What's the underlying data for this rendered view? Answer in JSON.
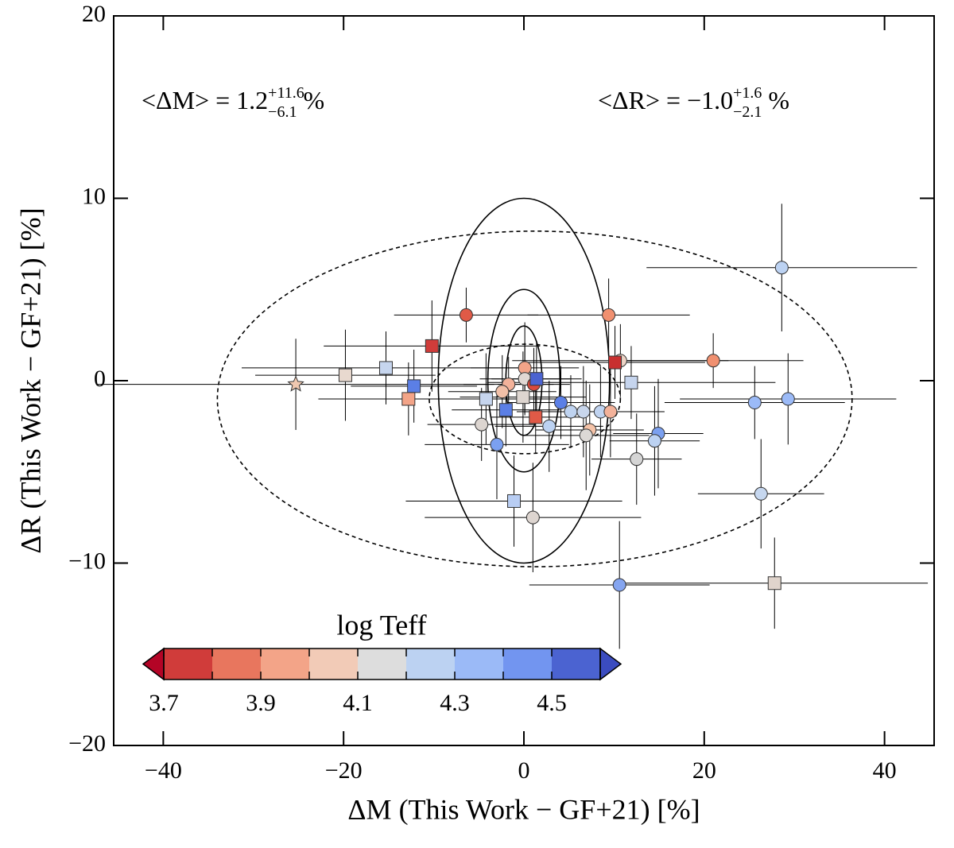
{
  "chart_data": {
    "type": "scatter",
    "xlabel": "ΔM (This Work − GF+21) [%]",
    "ylabel": "ΔR (This Work − GF+21) [%]",
    "xlim": [
      -45.5,
      45.5
    ],
    "ylim": [
      -20,
      20
    ],
    "xticks": [
      {
        "value": -40,
        "label": "−40"
      },
      {
        "value": -20,
        "label": "−20"
      },
      0,
      20,
      40
    ],
    "yticks": [
      {
        "value": -20,
        "label": "−20"
      },
      {
        "value": -10,
        "label": "−10"
      },
      0,
      10,
      20
    ],
    "annotations": [
      {
        "main": "<ΔM> = 1.2",
        "sup": "+11.6",
        "sub": "−6.1",
        "unit": "%"
      },
      {
        "main": "<ΔR> = −1.0",
        "sup": "+1.6",
        "sub": "−2.1",
        "unit": "%"
      }
    ],
    "ellipses": [
      {
        "cx": 0,
        "cy": 0,
        "rx": 9.5,
        "ry": 10,
        "dashed": false
      },
      {
        "cx": 0,
        "cy": 0,
        "rx": 4,
        "ry": 5,
        "dashed": false
      },
      {
        "cx": 0,
        "cy": 0,
        "rx": 2,
        "ry": 3,
        "dashed": false
      },
      {
        "cx": 1.2,
        "cy": -1.0,
        "rx": 35.2,
        "ry": 9.2,
        "dashed": true
      },
      {
        "cx": 0.1,
        "cy": -1.0,
        "rx": 10.6,
        "ry": 3.0,
        "dashed": true
      }
    ],
    "series": [
      {
        "marker": "circle",
        "x": [
          -6.4,
          9.4,
          28.6,
          21.0,
          25.6,
          29.3,
          10.7,
          -4.7,
          -3.0,
          0.1,
          -1.7,
          -2.4,
          0.1,
          1.1,
          4.1,
          5.2,
          6.6,
          8.5,
          9.6,
          7.3,
          6.9,
          2.8,
          14.9,
          14.5,
          12.5,
          26.3,
          1.0,
          10.6
        ],
        "y": [
          3.6,
          3.6,
          6.2,
          1.1,
          -1.2,
          -1.0,
          1.1,
          -2.4,
          -3.5,
          0.7,
          -0.2,
          -0.6,
          0.1,
          -0.2,
          -1.2,
          -1.7,
          -1.7,
          -1.7,
          -1.7,
          -2.7,
          -3.0,
          -2.5,
          -2.9,
          -3.3,
          -4.3,
          -6.2,
          -7.5,
          -11.2
        ],
        "xerr": [
          8,
          9,
          15,
          10,
          10,
          12,
          12,
          6,
          8,
          6,
          5,
          6,
          5,
          4,
          6,
          6,
          7,
          6,
          6,
          6,
          7,
          6,
          5,
          5,
          5,
          7,
          12,
          10
        ],
        "yerr": [
          1.5,
          2,
          3.5,
          1.5,
          2,
          2.5,
          2,
          2,
          3,
          2.5,
          1.5,
          2,
          2,
          2,
          2,
          2,
          2.5,
          2.5,
          2.5,
          2.5,
          3,
          2.5,
          3,
          3,
          2.5,
          3,
          3,
          3.5
        ],
        "colors": [
          "#e05a47",
          "#f09070",
          "#bcd2f2",
          "#f09070",
          "#9bbaf7",
          "#9bbaf7",
          "#ecd3c5",
          "#dcd5d0",
          "#7ba0f0",
          "#f3a488",
          "#f3b29a",
          "#f2c0a8",
          "#e0d8d3",
          "#d94a3c",
          "#5b7fe6",
          "#bfd3f0",
          "#c8d6ec",
          "#c0d3f0",
          "#f3b29a",
          "#f5c3a8",
          "#dcd8d5",
          "#bcd2f2",
          "#7ba0f0",
          "#bcd2f2",
          "#d5d5d5",
          "#c6d7ef",
          "#ddd5d0",
          "#85a5f0"
        ]
      },
      {
        "marker": "square",
        "x": [
          -10.2,
          -19.8,
          -15.3,
          -12.2,
          -12.8,
          -4.2,
          -2.0,
          -0.1,
          1.3,
          11.9,
          10.1,
          -1.1,
          27.8,
          1.4
        ],
        "y": [
          1.9,
          0.3,
          0.7,
          -0.3,
          -1.0,
          -1.0,
          -1.6,
          -0.9,
          -2.0,
          -0.1,
          1.0,
          -6.6,
          -11.1,
          0.1
        ],
        "xerr": [
          12,
          10,
          16,
          7,
          10,
          8,
          6,
          7,
          5,
          16,
          10,
          12,
          17,
          5
        ],
        "yerr": [
          2.5,
          2.5,
          2,
          2,
          2,
          2.5,
          2,
          2.5,
          2,
          2,
          2,
          2.5,
          2.5,
          2
        ],
        "colors": [
          "#d03c3a",
          "#e8d9cf",
          "#c6d5ee",
          "#5b7fe6",
          "#f3a488",
          "#c6d5ee",
          "#5b7fe6",
          "#ddd5d0",
          "#e05a47",
          "#c6d5ee",
          "#c83030",
          "#b8cdf3",
          "#e0d4cc",
          "#4b63d1"
        ]
      },
      {
        "marker": "star",
        "x": [
          -25.3
        ],
        "y": [
          -0.2
        ],
        "xerr": [
          22
        ],
        "yerr": [
          2.5
        ],
        "colors": [
          "#f0c8b0"
        ]
      }
    ],
    "colorbar": {
      "title": "log Teff",
      "lim": [
        3.7,
        4.6
      ],
      "bounds": [
        3.7,
        3.8,
        3.9,
        4.0,
        4.1,
        4.2,
        4.3,
        4.4,
        4.5,
        4.6
      ],
      "colors": [
        "#d03c3a",
        "#e8765e",
        "#f3a488",
        "#f2cbb7",
        "#dddddd",
        "#bcd2f2",
        "#9bbaf7",
        "#7295f0",
        "#4b63d1"
      ],
      "extend_colors": [
        "#b40426",
        "#3b4cc0"
      ],
      "ticks": [
        3.7,
        3.9,
        4.1,
        4.3,
        4.5
      ]
    }
  }
}
